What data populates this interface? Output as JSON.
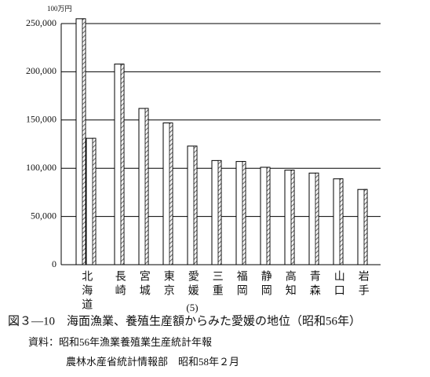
{
  "chart_data": {
    "type": "bar",
    "unit": "100万円",
    "categories": [
      "北海道",
      null,
      "長崎",
      "宮城",
      "東京",
      "愛媛",
      "三重",
      "福岡",
      "静岡",
      "高知",
      "青森",
      "山口",
      "岩手"
    ],
    "values": [
      255000,
      131000,
      208000,
      162000,
      147000,
      123000,
      108000,
      107000,
      101000,
      98000,
      95000,
      89000,
      78000
    ],
    "annotation": "(5)",
    "color": "#ffffff",
    "ylim": [
      0,
      250000
    ],
    "yticks": [
      0,
      {
        "value": 50000,
        "label": "50,000"
      },
      {
        "value": 100000,
        "label": "100,000"
      },
      {
        "value": 150000,
        "label": "150,000"
      },
      {
        "value": 200000,
        "label": "200,000"
      },
      {
        "value": 250000,
        "label": "250,000"
      }
    ],
    "grid": true,
    "caption": "図３—10　海面漁業、養殖生産額からみた愛媛の地位（昭和56年）",
    "source": "資料：昭和56年漁業養殖業生産統計年報",
    "source2": "農林水産省統計情報部　昭和58年２月"
  }
}
